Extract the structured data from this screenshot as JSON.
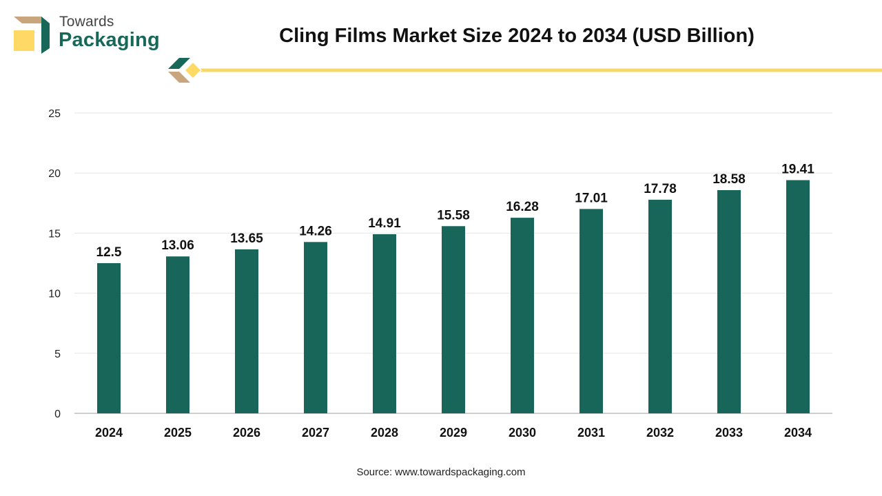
{
  "logo": {
    "line1": "Towards",
    "line2": "Packaging",
    "icon": "box-logo-icon"
  },
  "title": "Cling Films Market Size 2024 to 2034 (USD Billion)",
  "source": "Source: www.towardspackaging.com",
  "colors": {
    "bar": "#18655a",
    "accent_line": "#f5d86a",
    "logo_green": "#18685a",
    "logo_tan": "#c8a57c",
    "logo_yellow": "#ffd966",
    "grid": "#e6e6e6",
    "axis": "#bfbfbf"
  },
  "chart_data": {
    "type": "bar",
    "title": "Cling Films Market Size 2024 to 2034 (USD Billion)",
    "categories": [
      "2024",
      "2025",
      "2026",
      "2027",
      "2028",
      "2029",
      "2030",
      "2031",
      "2032",
      "2033",
      "2034"
    ],
    "values": [
      12.5,
      13.06,
      13.65,
      14.26,
      14.91,
      15.58,
      16.28,
      17.01,
      17.78,
      18.58,
      19.41
    ],
    "data_labels": [
      "12.5",
      "13.06",
      "13.65",
      "14.26",
      "14.91",
      "15.58",
      "16.28",
      "17.01",
      "17.78",
      "18.58",
      "19.41"
    ],
    "y_ticks": [
      0,
      5,
      10,
      15,
      20,
      25
    ],
    "ylim": [
      0,
      25
    ],
    "xlabel": "",
    "ylabel": "",
    "grid": true,
    "legend": "none"
  }
}
